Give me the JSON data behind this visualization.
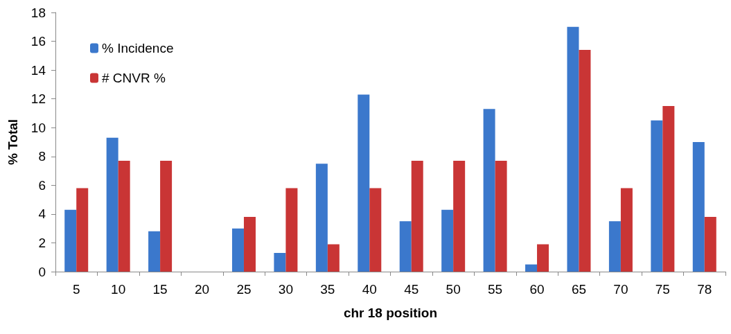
{
  "chart_data": {
    "type": "bar",
    "xlabel": "chr 18 position",
    "ylabel": "% Total",
    "categories": [
      "5",
      "10",
      "15",
      "20",
      "25",
      "30",
      "35",
      "40",
      "45",
      "50",
      "55",
      "60",
      "65",
      "70",
      "75",
      "78"
    ],
    "series": [
      {
        "name": "% Incidence",
        "color": "#3b78cc",
        "values": [
          4.3,
          9.3,
          2.8,
          0,
          3.0,
          1.3,
          7.5,
          12.3,
          3.5,
          4.3,
          11.3,
          0.5,
          17.0,
          3.5,
          10.5,
          9.0
        ]
      },
      {
        "name": "# CNVR %",
        "color": "#c93535",
        "values": [
          5.8,
          7.7,
          7.7,
          0,
          3.8,
          5.8,
          1.9,
          5.8,
          7.7,
          7.7,
          7.7,
          1.9,
          15.4,
          5.8,
          11.5,
          3.8
        ]
      }
    ],
    "ylim": [
      0,
      18
    ],
    "yticks": [
      0,
      2,
      4,
      6,
      8,
      10,
      12,
      14,
      16,
      18
    ],
    "grid": false,
    "legend": "top left"
  }
}
